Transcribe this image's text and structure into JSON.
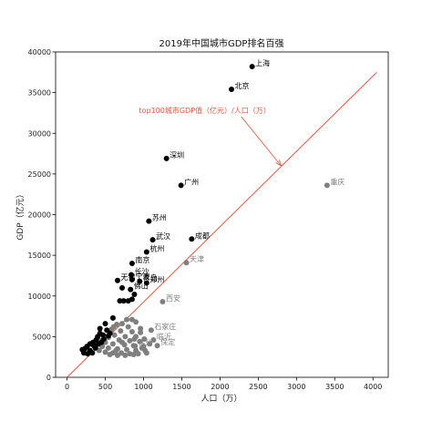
{
  "chart_data": {
    "type": "scatter",
    "title": "2019年中国城市GDP排名百强",
    "xlabel": "人口（万）",
    "ylabel": "GDP（亿元）",
    "xlim": [
      -150,
      4200
    ],
    "ylim": [
      0,
      40000
    ],
    "xticks": [
      0,
      500,
      1000,
      1500,
      2000,
      2500,
      3000,
      3500,
      4000
    ],
    "yticks": [
      0,
      5000,
      10000,
      15000,
      20000,
      25000,
      30000,
      35000,
      40000
    ],
    "grid": false,
    "colors": {
      "above": "#000000",
      "below": "#7f7f7f",
      "line": "#e8573c",
      "annotation": "#e8573c"
    },
    "line": {
      "x": [
        0,
        4050
      ],
      "y": [
        0,
        37500
      ]
    },
    "annotation": {
      "text": "top100城市GDP值（亿元）/人口（万）",
      "arrow_to": [
        2800,
        26000
      ],
      "text_at": [
        1800,
        32500
      ]
    },
    "labeled_points": [
      {
        "name": "上海",
        "x": 2420,
        "y": 38200,
        "group": "above"
      },
      {
        "name": "北京",
        "x": 2150,
        "y": 35400,
        "group": "above"
      },
      {
        "name": "深圳",
        "x": 1300,
        "y": 26900,
        "group": "above"
      },
      {
        "name": "广州",
        "x": 1490,
        "y": 23600,
        "group": "above"
      },
      {
        "name": "苏州",
        "x": 1070,
        "y": 19200,
        "group": "above"
      },
      {
        "name": "成都",
        "x": 1630,
        "y": 17000,
        "group": "above"
      },
      {
        "name": "武汉",
        "x": 1120,
        "y": 16900,
        "group": "above"
      },
      {
        "name": "杭州",
        "x": 1040,
        "y": 15400,
        "group": "above"
      },
      {
        "name": "南京",
        "x": 850,
        "y": 14000,
        "group": "above"
      },
      {
        "name": "天津",
        "x": 1560,
        "y": 14100,
        "group": "below"
      },
      {
        "name": "长沙",
        "x": 840,
        "y": 12600,
        "group": "above"
      },
      {
        "name": "无锡",
        "x": 660,
        "y": 11900,
        "group": "above"
      },
      {
        "name": "宁波",
        "x": 850,
        "y": 12000,
        "group": "above"
      },
      {
        "name": "郑州",
        "x": 1040,
        "y": 11600,
        "group": "above"
      },
      {
        "name": "青岛",
        "x": 950,
        "y": 11800,
        "group": "above"
      },
      {
        "name": "佛山",
        "x": 830,
        "y": 10800,
        "group": "above"
      },
      {
        "name": "重庆",
        "x": 3400,
        "y": 23600,
        "group": "below"
      },
      {
        "name": "西安",
        "x": 1250,
        "y": 9300,
        "group": "below"
      },
      {
        "name": "石家庄",
        "x": 1100,
        "y": 5800,
        "group": "below"
      },
      {
        "name": "临沂",
        "x": 1130,
        "y": 4600,
        "group": "below"
      },
      {
        "name": "保定",
        "x": 1180,
        "y": 3900,
        "group": "below"
      },
      {
        "name": "徐州",
        "x": 890,
        "y": 3850,
        "group": "below"
      }
    ],
    "above_points": [
      [
        690,
        9400
      ],
      [
        740,
        9400
      ],
      [
        800,
        9400
      ],
      [
        850,
        9600
      ],
      [
        880,
        10200
      ],
      [
        720,
        11000
      ],
      [
        600,
        7300
      ],
      [
        500,
        6600
      ],
      [
        430,
        6000
      ],
      [
        520,
        5800
      ],
      [
        560,
        5400
      ],
      [
        470,
        5200
      ],
      [
        400,
        5000
      ],
      [
        380,
        4600
      ],
      [
        450,
        4300
      ],
      [
        340,
        4300
      ],
      [
        300,
        4100
      ],
      [
        350,
        3900
      ],
      [
        260,
        3800
      ],
      [
        230,
        3500
      ],
      [
        200,
        3400
      ],
      [
        300,
        3300
      ],
      [
        330,
        3000
      ],
      [
        220,
        3000
      ],
      [
        270,
        2900
      ],
      [
        410,
        4100
      ],
      [
        480,
        4700
      ],
      [
        540,
        5100
      ],
      [
        430,
        5400
      ],
      [
        370,
        3600
      ]
    ],
    "below_points": [
      [
        780,
        7100
      ],
      [
        850,
        7100
      ],
      [
        720,
        6600
      ],
      [
        900,
        6800
      ],
      [
        650,
        6500
      ],
      [
        800,
        6200
      ],
      [
        580,
        5900
      ],
      [
        700,
        5700
      ],
      [
        850,
        5600
      ],
      [
        960,
        5500
      ],
      [
        620,
        5200
      ],
      [
        760,
        5000
      ],
      [
        900,
        5000
      ],
      [
        540,
        4900
      ],
      [
        680,
        4600
      ],
      [
        820,
        4500
      ],
      [
        950,
        4400
      ],
      [
        500,
        4300
      ],
      [
        600,
        4100
      ],
      [
        750,
        4000
      ],
      [
        870,
        3900
      ],
      [
        1000,
        3800
      ],
      [
        460,
        3800
      ],
      [
        540,
        3600
      ],
      [
        660,
        3500
      ],
      [
        780,
        3400
      ],
      [
        900,
        3300
      ],
      [
        1020,
        3300
      ],
      [
        420,
        3300
      ],
      [
        500,
        3100
      ],
      [
        600,
        3000
      ],
      [
        710,
        3000
      ],
      [
        820,
        2900
      ],
      [
        930,
        2900
      ],
      [
        1040,
        3000
      ],
      [
        560,
        2800
      ],
      [
        660,
        2700
      ],
      [
        760,
        2700
      ],
      [
        870,
        2800
      ],
      [
        980,
        3600
      ],
      [
        1080,
        4100
      ],
      [
        640,
        3300
      ],
      [
        720,
        4300
      ],
      [
        880,
        4700
      ],
      [
        960,
        6000
      ],
      [
        1010,
        4700
      ],
      [
        440,
        4500
      ],
      [
        610,
        6200
      ]
    ]
  }
}
